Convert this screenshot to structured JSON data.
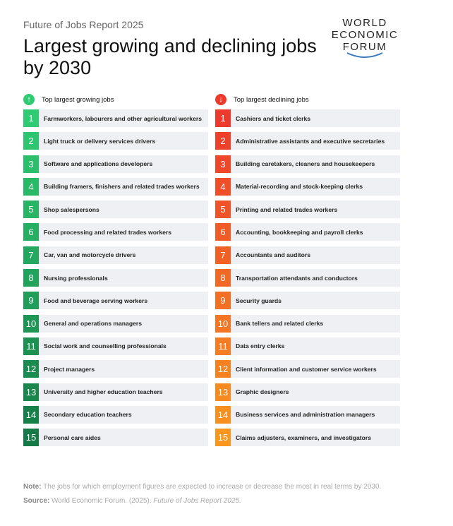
{
  "kicker": "Future of Jobs Report 2025",
  "title": "Largest growing and declining jobs by 2030",
  "logo": {
    "line1": "WORLD",
    "line2": "ECONOMIC",
    "line3": "FORUM"
  },
  "colors": {
    "growing_start": "#2fcb72",
    "growing_end": "#157a45",
    "declining_start": "#ec3a2c",
    "declining_end": "#f8961e"
  },
  "growing": {
    "heading": "Top largest growing jobs",
    "icon": "arrow-up-icon",
    "items": [
      "Farmworkers, labourers and other agricultural workers",
      "Light truck or delivery services drivers",
      "Software and applications developers",
      "Building framers, finishers and related trades workers",
      "Shop salespersons",
      "Food processing and related trades workers",
      "Car, van and motorcycle drivers",
      "Nursing professionals",
      "Food and beverage serving workers",
      "General and operations managers",
      "Social work and counselling professionals",
      "Project managers",
      "University and higher education teachers",
      "Secondary education teachers",
      "Personal care aides"
    ]
  },
  "declining": {
    "heading": "Top largest declining jobs",
    "icon": "arrow-down-icon",
    "items": [
      "Cashiers and ticket clerks",
      "Administrative assistants and executive secretaries",
      "Building caretakers, cleaners and housekeepers",
      "Material-recording and stock-keeping clerks",
      "Printing and related trades workers",
      "Accounting, bookkeeping and payroll clerks",
      "Accountants and auditors",
      "Transportation attendants and conductors",
      "Security guards",
      "Bank tellers and related clerks",
      "Data entry clerks",
      "Client information and customer service workers",
      "Graphic designers",
      "Business services and administration managers",
      "Claims adjusters, examiners, and investigators"
    ]
  },
  "note": {
    "label": "Note:",
    "text": "The jobs for which employment figures are expected to increase or decrease the most in real terms by 2030."
  },
  "source": {
    "label": "Source:",
    "text": "World Economic Forum. (2025).",
    "italic": "Future of Jobs Report 2025."
  }
}
